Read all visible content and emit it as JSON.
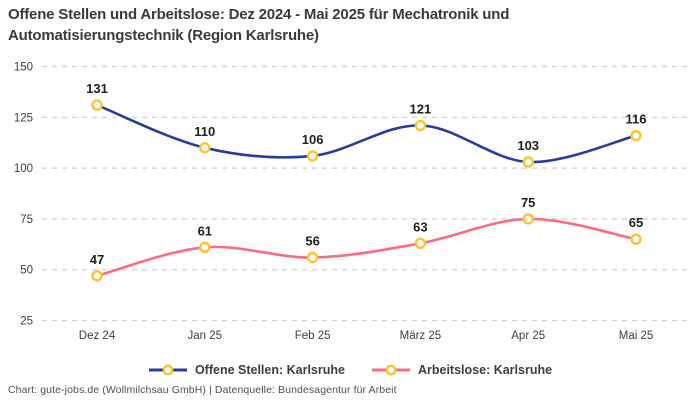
{
  "title": {
    "line1": "Offene Stellen und Arbeitslose: Dez 2024 - Mai 2025 für Mechatronik und",
    "line2": "Automatisierungstechnik (Region Karlsruhe)"
  },
  "footer": "Chart: gute-jobs.de (Wollmilchsau GmbH) | Datenquelle: Bundesagentur für Arbeit",
  "chart_data": {
    "type": "line",
    "title": "Offene Stellen und Arbeitslose: Dez 2024 - Mai 2025 für Mechatronik und Automatisierungstechnik (Region Karlsruhe)",
    "categories": [
      "Dez 24",
      "Jan 25",
      "Feb 25",
      "März 25",
      "Apr 25",
      "Mai 25"
    ],
    "series": [
      {
        "id": "offene-stellen",
        "name": "Offene Stellen: Karlsruhe",
        "values": [
          131,
          110,
          106,
          121,
          103,
          116
        ],
        "color": "#243ea0"
      },
      {
        "id": "arbeitslose",
        "name": "Arbeitslose: Karlsruhe",
        "values": [
          47,
          61,
          56,
          63,
          75,
          65
        ],
        "color": "#fa6c84"
      }
    ],
    "yticks": [
      150,
      125,
      100,
      75,
      50,
      25
    ],
    "ylim": [
      25,
      150
    ],
    "xlabel": "",
    "ylabel": "",
    "marker_color": "#fcc42c",
    "marker_fill": "#ffffff",
    "grid_color": "#cdcdcd",
    "grid_dashed": true,
    "point_labels": true,
    "legend_position": "bottom",
    "smooth_lines": true
  }
}
